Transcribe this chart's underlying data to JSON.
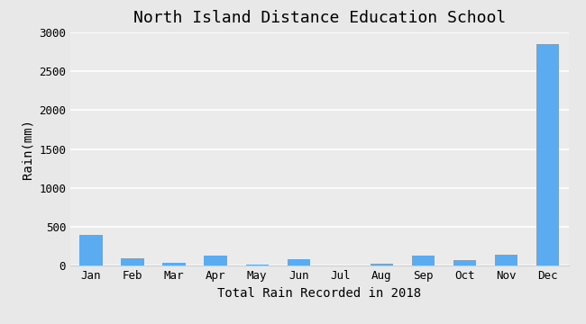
{
  "title": "North Island Distance Education School",
  "xlabel": "Total Rain Recorded in 2018",
  "ylabel": "Rain(mm)",
  "categories": [
    "Jan",
    "Feb",
    "Mar",
    "Apr",
    "May",
    "Jun",
    "Jul",
    "Aug",
    "Sep",
    "Oct",
    "Nov",
    "Dec"
  ],
  "values": [
    400,
    100,
    35,
    130,
    15,
    80,
    0,
    20,
    130,
    70,
    145,
    2850
  ],
  "bar_color": "#5aabf0",
  "ylim": [
    0,
    3000
  ],
  "yticks": [
    0,
    500,
    1000,
    1500,
    2000,
    2500,
    3000
  ],
  "background_color": "#e8e8e8",
  "plot_bg_color": "#ebebeb",
  "grid_color": "#ffffff",
  "title_fontsize": 13,
  "label_fontsize": 10,
  "tick_fontsize": 9,
  "font_family": "monospace"
}
